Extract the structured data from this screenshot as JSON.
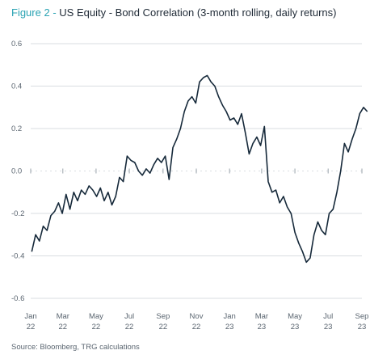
{
  "title": {
    "figure_label": "Figure 2",
    "separator": "-",
    "text": "US Equity - Bond Correlation  (3-month rolling, daily returns)"
  },
  "source": "Source: Bloomberg, TRG calculations",
  "colors": {
    "accent": "#2aa3b3",
    "line": "#16293a",
    "grid": "#d9dde1",
    "axis_text": "#5a6570"
  },
  "chart_data": {
    "type": "line",
    "title": "US Equity - Bond Correlation  (3-month rolling, daily returns)",
    "xlabel": "",
    "ylabel": "",
    "x_range": [
      "2022-01",
      "2023-09"
    ],
    "ylim": [
      -0.6,
      0.6
    ],
    "grid": true,
    "legend": "none",
    "y_ticks": [
      "0.6",
      "0.4",
      "0.2",
      "0.0",
      "-0.2",
      "-0.4",
      "-0.6"
    ],
    "x_ticks": [
      {
        "month": "Jan",
        "year": "22"
      },
      {
        "month": "Mar",
        "year": "22"
      },
      {
        "month": "May",
        "year": "22"
      },
      {
        "month": "Jul",
        "year": "22"
      },
      {
        "month": "Sep",
        "year": "22"
      },
      {
        "month": "Nov",
        "year": "22"
      },
      {
        "month": "Jan",
        "year": "23"
      },
      {
        "month": "Mar",
        "year": "23"
      },
      {
        "month": "May",
        "year": "23"
      },
      {
        "month": "Jul",
        "year": "23"
      },
      {
        "month": "Sep",
        "year": "23"
      }
    ],
    "series": [
      {
        "values": [
          [
            "2022-01-03",
            -0.38
          ],
          [
            "2022-01-10",
            -0.3
          ],
          [
            "2022-01-17",
            -0.33
          ],
          [
            "2022-01-24",
            -0.26
          ],
          [
            "2022-01-31",
            -0.28
          ],
          [
            "2022-02-07",
            -0.21
          ],
          [
            "2022-02-14",
            -0.19
          ],
          [
            "2022-02-21",
            -0.15
          ],
          [
            "2022-02-28",
            -0.2
          ],
          [
            "2022-03-07",
            -0.11
          ],
          [
            "2022-03-14",
            -0.18
          ],
          [
            "2022-03-21",
            -0.1
          ],
          [
            "2022-03-28",
            -0.14
          ],
          [
            "2022-04-04",
            -0.09
          ],
          [
            "2022-04-11",
            -0.11
          ],
          [
            "2022-04-18",
            -0.07
          ],
          [
            "2022-04-25",
            -0.09
          ],
          [
            "2022-05-02",
            -0.12
          ],
          [
            "2022-05-09",
            -0.08
          ],
          [
            "2022-05-16",
            -0.14
          ],
          [
            "2022-05-23",
            -0.1
          ],
          [
            "2022-05-30",
            -0.16
          ],
          [
            "2022-06-06",
            -0.12
          ],
          [
            "2022-06-13",
            -0.03
          ],
          [
            "2022-06-20",
            -0.05
          ],
          [
            "2022-06-27",
            0.07
          ],
          [
            "2022-07-04",
            0.05
          ],
          [
            "2022-07-11",
            0.04
          ],
          [
            "2022-07-18",
            0.0
          ],
          [
            "2022-07-25",
            -0.02
          ],
          [
            "2022-08-01",
            0.01
          ],
          [
            "2022-08-08",
            -0.01
          ],
          [
            "2022-08-15",
            0.03
          ],
          [
            "2022-08-22",
            0.06
          ],
          [
            "2022-08-29",
            0.04
          ],
          [
            "2022-09-05",
            0.07
          ],
          [
            "2022-09-12",
            -0.04
          ],
          [
            "2022-09-19",
            0.11
          ],
          [
            "2022-09-26",
            0.15
          ],
          [
            "2022-10-03",
            0.2
          ],
          [
            "2022-10-10",
            0.28
          ],
          [
            "2022-10-17",
            0.33
          ],
          [
            "2022-10-24",
            0.35
          ],
          [
            "2022-10-31",
            0.32
          ],
          [
            "2022-11-07",
            0.42
          ],
          [
            "2022-11-14",
            0.44
          ],
          [
            "2022-11-21",
            0.45
          ],
          [
            "2022-11-28",
            0.42
          ],
          [
            "2022-12-05",
            0.4
          ],
          [
            "2022-12-12",
            0.35
          ],
          [
            "2022-12-19",
            0.31
          ],
          [
            "2022-12-26",
            0.28
          ],
          [
            "2023-01-02",
            0.24
          ],
          [
            "2023-01-09",
            0.25
          ],
          [
            "2023-01-16",
            0.22
          ],
          [
            "2023-01-23",
            0.27
          ],
          [
            "2023-01-30",
            0.18
          ],
          [
            "2023-02-06",
            0.08
          ],
          [
            "2023-02-13",
            0.13
          ],
          [
            "2023-02-20",
            0.16
          ],
          [
            "2023-02-27",
            0.12
          ],
          [
            "2023-03-06",
            0.21
          ],
          [
            "2023-03-13",
            -0.05
          ],
          [
            "2023-03-20",
            -0.1
          ],
          [
            "2023-03-27",
            -0.09
          ],
          [
            "2023-04-03",
            -0.15
          ],
          [
            "2023-04-10",
            -0.12
          ],
          [
            "2023-04-17",
            -0.17
          ],
          [
            "2023-04-24",
            -0.2
          ],
          [
            "2023-05-01",
            -0.29
          ],
          [
            "2023-05-08",
            -0.34
          ],
          [
            "2023-05-15",
            -0.38
          ],
          [
            "2023-05-22",
            -0.43
          ],
          [
            "2023-05-29",
            -0.41
          ],
          [
            "2023-06-05",
            -0.3
          ],
          [
            "2023-06-12",
            -0.24
          ],
          [
            "2023-06-19",
            -0.28
          ],
          [
            "2023-06-26",
            -0.3
          ],
          [
            "2023-07-03",
            -0.2
          ],
          [
            "2023-07-10",
            -0.18
          ],
          [
            "2023-07-17",
            -0.1
          ],
          [
            "2023-07-24",
            0.0
          ],
          [
            "2023-07-31",
            0.13
          ],
          [
            "2023-08-07",
            0.09
          ],
          [
            "2023-08-14",
            0.15
          ],
          [
            "2023-08-21",
            0.2
          ],
          [
            "2023-08-28",
            0.27
          ],
          [
            "2023-09-04",
            0.3
          ],
          [
            "2023-09-11",
            0.28
          ]
        ]
      }
    ]
  }
}
